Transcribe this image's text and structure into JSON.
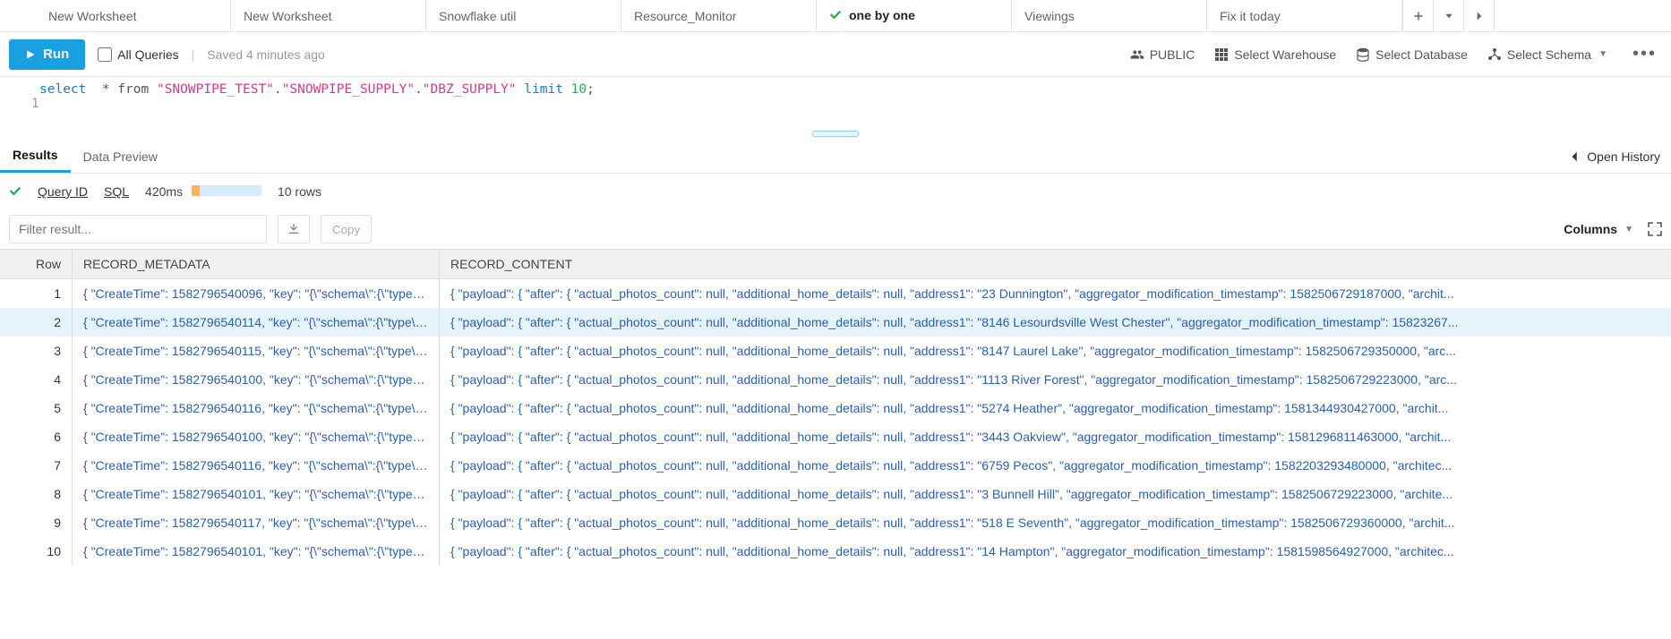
{
  "colors": {
    "accent": "#1aa0e0",
    "link_blue": "#2b5fab",
    "keyword": "#1a7fbf",
    "string": "#d03a8f",
    "number": "#2aa84f",
    "success": "#2aa84f",
    "row_hover": "#e5f3fb",
    "header_bg": "#eef0f1",
    "border": "#e6e6e6"
  },
  "tabs": [
    {
      "label": "New Worksheet",
      "active": false,
      "check": false
    },
    {
      "label": "New Worksheet",
      "active": false,
      "check": false
    },
    {
      "label": "Snowflake util",
      "active": false,
      "check": false
    },
    {
      "label": "Resource_Monitor",
      "active": false,
      "check": false
    },
    {
      "label": "one by one",
      "active": true,
      "check": true
    },
    {
      "label": "Viewings",
      "active": false,
      "check": false
    },
    {
      "label": "Fix it today",
      "active": false,
      "check": false
    }
  ],
  "toolbar": {
    "run_label": "Run",
    "all_queries_label": "All Queries",
    "saved_text": "Saved 4 minutes ago",
    "context": {
      "role": "PUBLIC",
      "warehouse": "Select Warehouse",
      "database": "Select Database",
      "schema": "Select Schema"
    }
  },
  "editor": {
    "line_no": "1",
    "tokens": {
      "select": "select",
      "star_from": "  * from ",
      "q1": "\"SNOWPIPE_TEST\"",
      "dot1": ".",
      "q2": "\"SNOWPIPE_SUPPLY\"",
      "dot2": ".",
      "q3": "\"DBZ_SUPPLY\"",
      "limit": " limit ",
      "ten": "10",
      "semi": ";"
    }
  },
  "result_tabs": {
    "results": "Results",
    "data_preview": "Data Preview",
    "open_history": "Open History"
  },
  "stats": {
    "query_id": "Query ID",
    "sql": "SQL",
    "duration": "420ms",
    "duration_compile_pct": 12,
    "rows": "10 rows"
  },
  "actions": {
    "filter_placeholder": "Filter result...",
    "copy_label": "Copy",
    "columns_label": "Columns"
  },
  "grid": {
    "columns": {
      "row": "Row",
      "meta": "RECORD_METADATA",
      "content": "RECORD_CONTENT"
    },
    "highlighted_row_index": 1,
    "rows": [
      {
        "n": "1",
        "meta": "{ \"CreateTime\": 1582796540096, \"key\": \"{\\\"schema\\\":{\\\"type\\\":\\\"...",
        "content": "{ \"payload\": { \"after\": { \"actual_photos_count\": null, \"additional_home_details\": null, \"address1\": \"23 Dunnington\", \"aggregator_modification_timestamp\": 1582506729187000, \"archit..."
      },
      {
        "n": "2",
        "meta": "{ \"CreateTime\": 1582796540114, \"key\": \"{\\\"schema\\\":{\\\"type\\\":\\\"...",
        "content": "{ \"payload\": { \"after\": { \"actual_photos_count\": null, \"additional_home_details\": null, \"address1\": \"8146 Lesourdsville West Chester\", \"aggregator_modification_timestamp\": 15823267..."
      },
      {
        "n": "3",
        "meta": "{ \"CreateTime\": 1582796540115, \"key\": \"{\\\"schema\\\":{\\\"type\\\":\\\"...",
        "content": "{ \"payload\": { \"after\": { \"actual_photos_count\": null, \"additional_home_details\": null, \"address1\": \"8147 Laurel Lake\", \"aggregator_modification_timestamp\": 1582506729350000, \"arc..."
      },
      {
        "n": "4",
        "meta": "{ \"CreateTime\": 1582796540100, \"key\": \"{\\\"schema\\\":{\\\"type\\\":\\\"...",
        "content": "{ \"payload\": { \"after\": { \"actual_photos_count\": null, \"additional_home_details\": null, \"address1\": \"1113 River Forest\", \"aggregator_modification_timestamp\": 1582506729223000, \"arc..."
      },
      {
        "n": "5",
        "meta": "{ \"CreateTime\": 1582796540116, \"key\": \"{\\\"schema\\\":{\\\"type\\\":\\\"...",
        "content": "{ \"payload\": { \"after\": { \"actual_photos_count\": null, \"additional_home_details\": null, \"address1\": \"5274 Heather\", \"aggregator_modification_timestamp\": 1581344930427000, \"archit..."
      },
      {
        "n": "6",
        "meta": "{ \"CreateTime\": 1582796540100, \"key\": \"{\\\"schema\\\":{\\\"type\\\":\\\"...",
        "content": "{ \"payload\": { \"after\": { \"actual_photos_count\": null, \"additional_home_details\": null, \"address1\": \"3443 Oakview\", \"aggregator_modification_timestamp\": 1581296811463000, \"archit..."
      },
      {
        "n": "7",
        "meta": "{ \"CreateTime\": 1582796540116, \"key\": \"{\\\"schema\\\":{\\\"type\\\":\\\"...",
        "content": "{ \"payload\": { \"after\": { \"actual_photos_count\": null, \"additional_home_details\": null, \"address1\": \"6759 Pecos\", \"aggregator_modification_timestamp\": 1582203293480000, \"architec..."
      },
      {
        "n": "8",
        "meta": "{ \"CreateTime\": 1582796540101, \"key\": \"{\\\"schema\\\":{\\\"type\\\":\\\"...",
        "content": "{ \"payload\": { \"after\": { \"actual_photos_count\": null, \"additional_home_details\": null, \"address1\": \"3 Bunnell Hill\", \"aggregator_modification_timestamp\": 1582506729223000, \"archite..."
      },
      {
        "n": "9",
        "meta": "{ \"CreateTime\": 1582796540117, \"key\": \"{\\\"schema\\\":{\\\"type\\\":\\\"...",
        "content": "{ \"payload\": { \"after\": { \"actual_photos_count\": null, \"additional_home_details\": null, \"address1\": \"518 E Seventh\", \"aggregator_modification_timestamp\": 1582506729360000, \"archit..."
      },
      {
        "n": "10",
        "meta": "{ \"CreateTime\": 1582796540101, \"key\": \"{\\\"schema\\\":{\\\"type\\\":\\\"...",
        "content": "{ \"payload\": { \"after\": { \"actual_photos_count\": null, \"additional_home_details\": null, \"address1\": \"14 Hampton\", \"aggregator_modification_timestamp\": 1581598564927000, \"architec..."
      }
    ]
  }
}
